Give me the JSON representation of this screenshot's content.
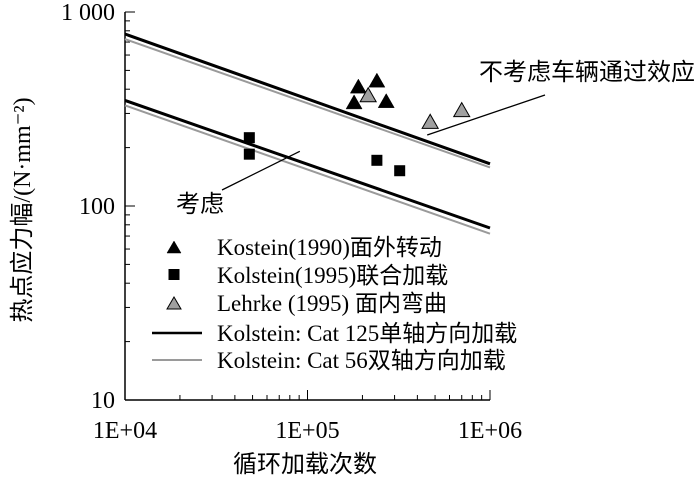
{
  "chart_data": {
    "type": "scatter",
    "title": "",
    "xlabel": "循环加载次数",
    "ylabel": "热点应力幅/(N·mm⁻²)",
    "xscale": "log",
    "yscale": "log",
    "xlim": [
      10000,
      1000000
    ],
    "ylim": [
      10,
      1000
    ],
    "x_ticks": [
      {
        "value": 10000,
        "label": "1E+04"
      },
      {
        "value": 100000,
        "label": "1E+05"
      },
      {
        "value": 1000000,
        "label": "1E+06"
      }
    ],
    "y_ticks": [
      {
        "value": 10,
        "label": "10"
      },
      {
        "value": 100,
        "label": "100"
      },
      {
        "value": 1000,
        "label": "1 000"
      }
    ],
    "grid": false,
    "legend_position": "bottom-left",
    "series": [
      {
        "name": "Kostein(1990)面外转动",
        "marker": "triangle",
        "color": "#000000",
        "points": [
          {
            "x": 180000,
            "y": 340
          },
          {
            "x": 190000,
            "y": 410
          },
          {
            "x": 240000,
            "y": 440
          },
          {
            "x": 270000,
            "y": 345
          }
        ]
      },
      {
        "name": "Kolstein(1995)联合加载",
        "marker": "square",
        "color": "#000000",
        "points": [
          {
            "x": 48000,
            "y": 225
          },
          {
            "x": 48000,
            "y": 185
          },
          {
            "x": 240000,
            "y": 172
          },
          {
            "x": 320000,
            "y": 152
          }
        ]
      },
      {
        "name": "Lehrke (1995) 面内弯曲",
        "marker": "triangle",
        "color": "#a0a0a0",
        "points": [
          {
            "x": 215000,
            "y": 370
          },
          {
            "x": 470000,
            "y": 270
          },
          {
            "x": 700000,
            "y": 310
          }
        ]
      },
      {
        "name": "Kolstein: Cat 125单轴方向加载",
        "marker": "line",
        "color": "#000000",
        "lines": [
          [
            {
              "x": 10000,
              "y": 770
            },
            {
              "x": 1000000,
              "y": 165
            }
          ],
          [
            {
              "x": 10000,
              "y": 350
            },
            {
              "x": 1000000,
              "y": 77
            }
          ]
        ]
      },
      {
        "name": "Kolstein: Cat 56双轴方向加载",
        "marker": "line",
        "color": "#9a9a9a",
        "lines": [
          [
            {
              "x": 10000,
              "y": 725
            },
            {
              "x": 1000000,
              "y": 158
            }
          ],
          [
            {
              "x": 10000,
              "y": 330
            },
            {
              "x": 1000000,
              "y": 72
            }
          ]
        ]
      }
    ],
    "annotations": [
      {
        "text": "不考虑车辆通过效应",
        "target": {
          "x": 750000,
          "y": 175
        }
      },
      {
        "text": "考虑",
        "target": {
          "x": 80000,
          "y": 170
        }
      }
    ]
  }
}
